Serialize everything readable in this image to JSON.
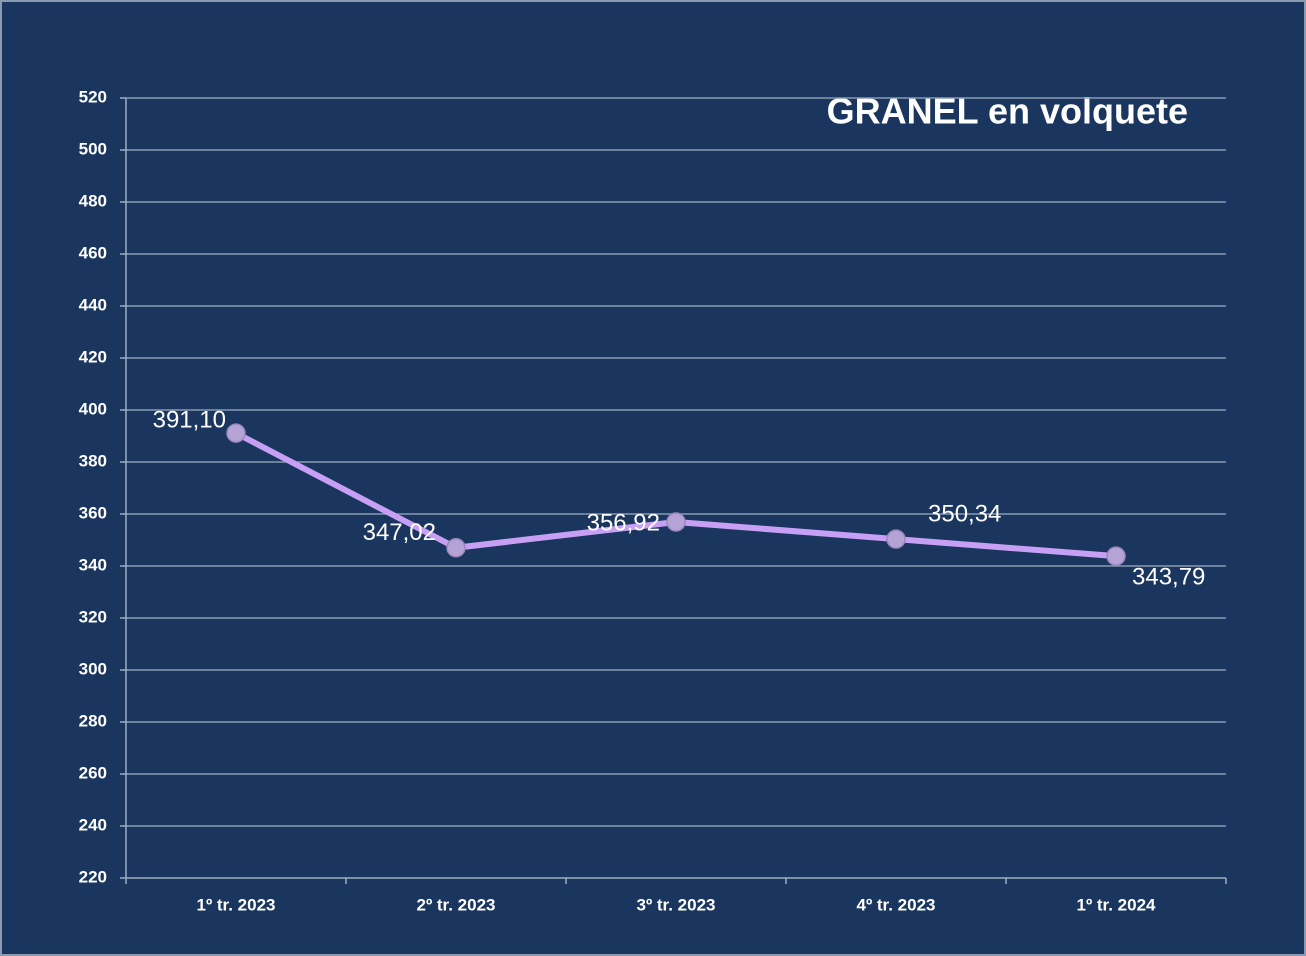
{
  "chart_data": {
    "type": "line",
    "title": "GRANEL en volquete",
    "categories": [
      "1º tr. 2023",
      "2º tr. 2023",
      "3º tr. 2023",
      "4º tr. 2023",
      "1º tr. 2024"
    ],
    "values": [
      391.1,
      347.02,
      356.92,
      350.34,
      343.79
    ],
    "value_labels": [
      "391,10",
      "347,02",
      "356,92",
      "350,34",
      "343,79"
    ],
    "color": "#c7a0f5",
    "ylim": [
      220,
      520
    ],
    "yticks": [
      220,
      240,
      260,
      280,
      300,
      320,
      340,
      360,
      380,
      400,
      420,
      440,
      460,
      480,
      500,
      520
    ],
    "grid": true
  }
}
